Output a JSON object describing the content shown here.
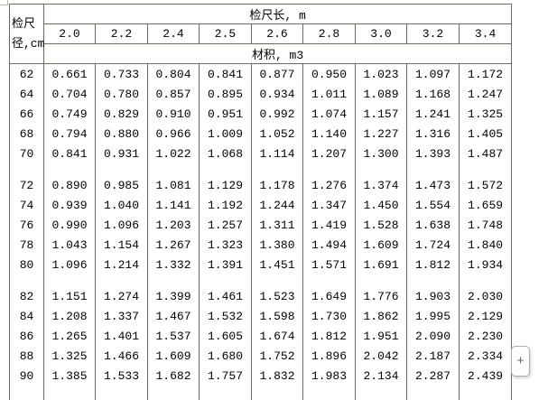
{
  "table": {
    "corner_header_line1": "检尺",
    "corner_header_line2": "径,cm",
    "length_header": "检尺长, m",
    "lengths": [
      "2.0",
      "2.2",
      "2.4",
      "2.5",
      "2.6",
      "2.8",
      "3.0",
      "3.2",
      "3.4"
    ],
    "volume_header": "材积, m3",
    "groups": [
      {
        "rows": [
          {
            "d": "62",
            "v": [
              "0.661",
              "0.733",
              "0.804",
              "0.841",
              "0.877",
              "0.950",
              "1.023",
              "1.097",
              "1.172"
            ]
          },
          {
            "d": "64",
            "v": [
              "0.704",
              "0.780",
              "0.857",
              "0.895",
              "0.934",
              "1.011",
              "1.089",
              "1.168",
              "1.247"
            ]
          },
          {
            "d": "66",
            "v": [
              "0.749",
              "0.829",
              "0.910",
              "0.951",
              "0.992",
              "1.074",
              "1.157",
              "1.241",
              "1.325"
            ]
          },
          {
            "d": "68",
            "v": [
              "0.794",
              "0.880",
              "0.966",
              "1.009",
              "1.052",
              "1.140",
              "1.227",
              "1.316",
              "1.405"
            ]
          },
          {
            "d": "70",
            "v": [
              "0.841",
              "0.931",
              "1.022",
              "1.068",
              "1.114",
              "1.207",
              "1.300",
              "1.393",
              "1.487"
            ]
          }
        ]
      },
      {
        "rows": [
          {
            "d": "72",
            "v": [
              "0.890",
              "0.985",
              "1.081",
              "1.129",
              "1.178",
              "1.276",
              "1.374",
              "1.473",
              "1.572"
            ]
          },
          {
            "d": "74",
            "v": [
              "0.939",
              "1.040",
              "1.141",
              "1.192",
              "1.244",
              "1.347",
              "1.450",
              "1.554",
              "1.659"
            ]
          },
          {
            "d": "76",
            "v": [
              "0.990",
              "1.096",
              "1.203",
              "1.257",
              "1.311",
              "1.419",
              "1.528",
              "1.638",
              "1.748"
            ]
          },
          {
            "d": "78",
            "v": [
              "1.043",
              "1.154",
              "1.267",
              "1.323",
              "1.380",
              "1.494",
              "1.609",
              "1.724",
              "1.840"
            ]
          },
          {
            "d": "80",
            "v": [
              "1.096",
              "1.214",
              "1.332",
              "1.391",
              "1.451",
              "1.571",
              "1.691",
              "1.812",
              "1.934"
            ]
          }
        ]
      },
      {
        "rows": [
          {
            "d": "82",
            "v": [
              "1.151",
              "1.274",
              "1.399",
              "1.461",
              "1.523",
              "1.649",
              "1.776",
              "1.903",
              "2.030"
            ]
          },
          {
            "d": "84",
            "v": [
              "1.208",
              "1.337",
              "1.467",
              "1.532",
              "1.598",
              "1.730",
              "1.862",
              "1.995",
              "2.129"
            ]
          },
          {
            "d": "86",
            "v": [
              "1.265",
              "1.401",
              "1.537",
              "1.605",
              "1.674",
              "1.812",
              "1.951",
              "2.090",
              "2.230"
            ]
          },
          {
            "d": "88",
            "v": [
              "1.325",
              "1.466",
              "1.609",
              "1.680",
              "1.752",
              "1.896",
              "2.042",
              "2.187",
              "2.334"
            ]
          },
          {
            "d": "90",
            "v": [
              "1.385",
              "1.533",
              "1.682",
              "1.757",
              "1.832",
              "1.983",
              "2.134",
              "2.287",
              "2.439"
            ]
          }
        ]
      }
    ]
  },
  "controls": {
    "add_button_label": "+"
  },
  "colors": {
    "grid_border": "#6b6a5c",
    "button_border": "#aeaeae",
    "button_glyph": "#6e6e6e",
    "background": "#ffffff"
  }
}
